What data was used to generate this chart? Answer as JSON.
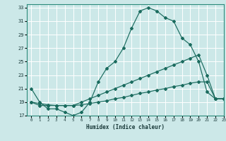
{
  "xlabel": "Humidex (Indice chaleur)",
  "bg_color": "#cce8e8",
  "grid_color": "#ffffff",
  "line_color": "#1a6b5e",
  "xlim": [
    -0.5,
    23
  ],
  "ylim": [
    17,
    33.5
  ],
  "xticks": [
    0,
    1,
    2,
    3,
    4,
    5,
    6,
    7,
    8,
    9,
    10,
    11,
    12,
    13,
    14,
    15,
    16,
    17,
    18,
    19,
    20,
    21,
    22,
    23
  ],
  "yticks": [
    17,
    19,
    21,
    23,
    25,
    27,
    29,
    31,
    33
  ],
  "curve1_x": [
    0,
    1,
    2,
    3,
    4,
    5,
    6,
    7,
    8,
    9,
    10,
    11,
    12,
    13,
    14,
    15,
    16,
    17,
    18,
    19,
    20,
    21,
    22,
    23
  ],
  "curve1_y": [
    21,
    19,
    18,
    18,
    17.5,
    17,
    17.5,
    19,
    22,
    24,
    25,
    27,
    30,
    32.5,
    33,
    32.5,
    31.5,
    31,
    28.5,
    27.5,
    25,
    20.5,
    19.5,
    19.5
  ],
  "curve2_x": [
    0,
    1,
    2,
    3,
    4,
    5,
    6,
    7,
    8,
    9,
    10,
    11,
    12,
    13,
    14,
    15,
    16,
    17,
    18,
    19,
    20,
    21,
    22,
    23
  ],
  "curve2_y": [
    19,
    18.5,
    18.5,
    18.5,
    18.5,
    18.5,
    19,
    19.5,
    20,
    20.5,
    21,
    21.5,
    22,
    22.5,
    23,
    23.5,
    24,
    24.5,
    25,
    25.5,
    26,
    23,
    19.5,
    19.5
  ],
  "curve3_x": [
    0,
    1,
    2,
    3,
    4,
    5,
    6,
    7,
    8,
    9,
    10,
    11,
    12,
    13,
    14,
    15,
    16,
    17,
    18,
    19,
    20,
    21,
    22,
    23
  ],
  "curve3_y": [
    19,
    18.8,
    18.6,
    18.5,
    18.5,
    18.5,
    18.6,
    18.8,
    19,
    19.2,
    19.5,
    19.7,
    20,
    20.3,
    20.5,
    20.8,
    21,
    21.3,
    21.5,
    21.8,
    22,
    22,
    19.5,
    19.5
  ]
}
